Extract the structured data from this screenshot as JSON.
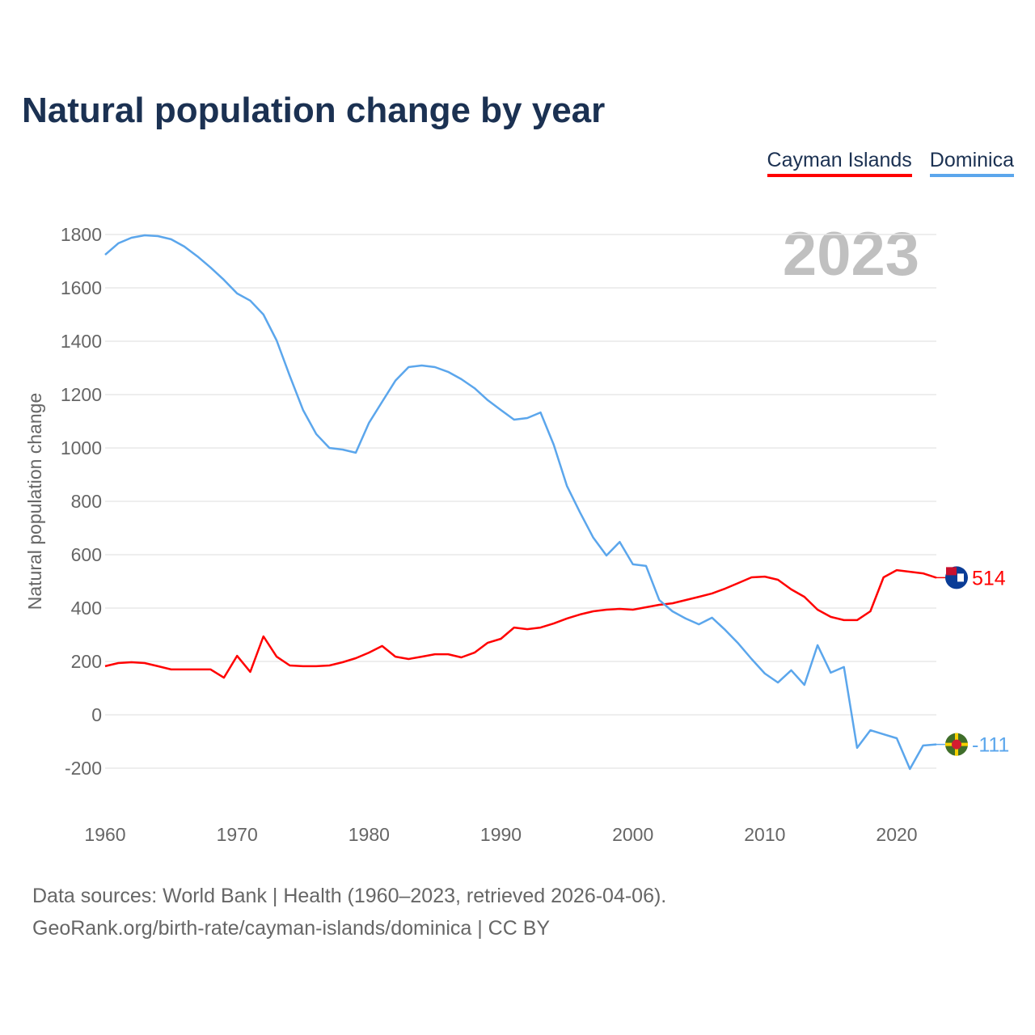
{
  "title": "Natural population change by year",
  "legend": [
    {
      "label": "Cayman Islands",
      "color": "#ff0000"
    },
    {
      "label": "Dominica",
      "color": "#5ba6ec"
    }
  ],
  "year_overlay": "2023",
  "source_lines": [
    "Data sources: World Bank | Health (1960–2023, retrieved 2026-04-06).",
    "GeoRank.org/birth-rate/cayman-islands/dominica | CC BY"
  ],
  "chart_data": {
    "type": "line",
    "title": "Natural population change by year",
    "xlabel": "",
    "ylabel": "Natural population change",
    "xlim": [
      1960,
      2023
    ],
    "ylim": [
      -200,
      1800
    ],
    "xticks": [
      1960,
      1970,
      1980,
      1990,
      2000,
      2010,
      2020
    ],
    "yticks": [
      -200,
      0,
      200,
      400,
      600,
      800,
      1000,
      1200,
      1400,
      1600,
      1800
    ],
    "grid": true,
    "legend_position": "top-right",
    "x_start": 1960,
    "series": [
      {
        "name": "Cayman Islands",
        "color": "#ff0000",
        "end_label": "514",
        "values": [
          182,
          194,
          197,
          194,
          182,
          170,
          170,
          170,
          170,
          139,
          221,
          161,
          294,
          218,
          185,
          182,
          182,
          185,
          197,
          212,
          233,
          258,
          218,
          209,
          218,
          227,
          227,
          215,
          233,
          270,
          285,
          327,
          321,
          327,
          342,
          361,
          376,
          388,
          394,
          397,
          394,
          403,
          412,
          418,
          430,
          442,
          455,
          473,
          494,
          515,
          518,
          506,
          470,
          442,
          394,
          367,
          355,
          355,
          388,
          515,
          542,
          536,
          530,
          514
        ]
      },
      {
        "name": "Dominica",
        "color": "#5ba6ec",
        "end_label": "-111",
        "values": [
          1724,
          1767,
          1788,
          1797,
          1794,
          1782,
          1755,
          1718,
          1676,
          1630,
          1579,
          1552,
          1500,
          1403,
          1270,
          1142,
          1052,
          1000,
          994,
          982,
          1094,
          1173,
          1252,
          1303,
          1309,
          1303,
          1285,
          1258,
          1224,
          1179,
          1142,
          1106,
          1112,
          1133,
          1012,
          858,
          758,
          664,
          597,
          648,
          564,
          558,
          430,
          388,
          361,
          339,
          364,
          318,
          267,
          209,
          155,
          121,
          167,
          112,
          261,
          158,
          179,
          -124,
          -58,
          -73,
          -88,
          -203,
          -115,
          -111
        ]
      }
    ]
  }
}
